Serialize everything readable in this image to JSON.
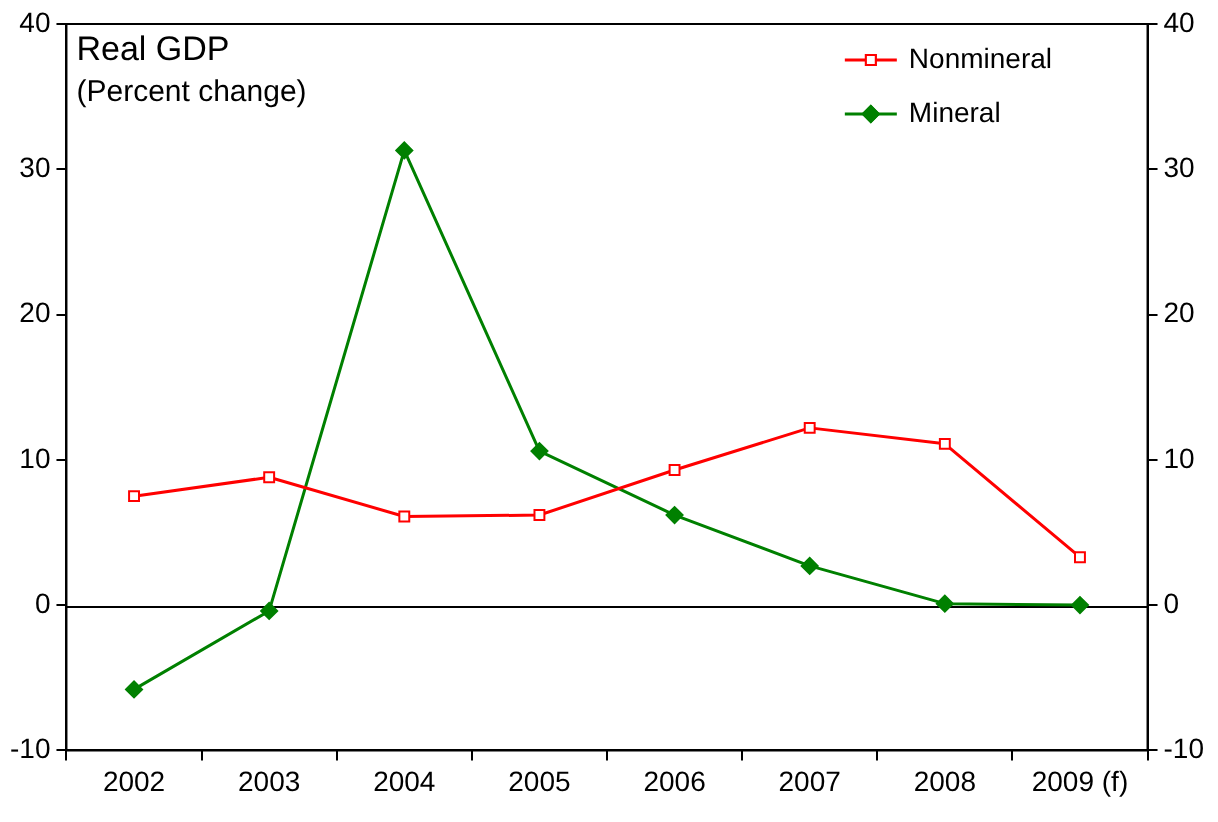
{
  "chart_data": {
    "type": "line",
    "title": "Real GDP",
    "subtitle": "(Percent change)",
    "categories": [
      "2002",
      "2003",
      "2004",
      "2005",
      "2006",
      "2007",
      "2008",
      "2009 (f)"
    ],
    "series": [
      {
        "name": "Nonmineral",
        "color": "#ff0000",
        "marker": "square",
        "values": [
          7.5,
          8.8,
          6.1,
          6.2,
          9.3,
          12.2,
          11.1,
          3.3
        ]
      },
      {
        "name": "Mineral",
        "color": "#008000",
        "marker": "diamond",
        "values": [
          -5.8,
          -0.4,
          31.3,
          10.6,
          6.2,
          2.7,
          0.1,
          0
        ]
      }
    ],
    "ylim": [
      -10,
      40
    ],
    "yticks": [
      -10,
      0,
      10,
      20,
      30,
      40
    ],
    "y2lim": [
      -10,
      40
    ],
    "y2ticks": [
      -10,
      0,
      10,
      20,
      30,
      40
    ],
    "ref_lines": [
      {
        "axis": "y",
        "value": 0,
        "color": "#000000"
      }
    ],
    "grid": false,
    "legend": "top right",
    "line_style": "solid"
  }
}
